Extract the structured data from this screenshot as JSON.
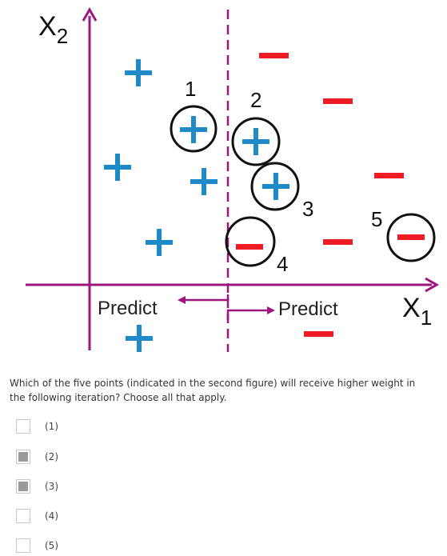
{
  "figure": {
    "axis_x_label": "X",
    "axis_x_subscript": "1",
    "axis_y_label": "X",
    "axis_y_subscript": "2",
    "predict_left": "Predict",
    "predict_right": "Predict",
    "point_labels": [
      "1",
      "2",
      "3",
      "4",
      "5"
    ],
    "colors": {
      "axis": "#a0147e",
      "plus": "#1e8ac8",
      "minus": "#ee1c25",
      "circle": "#111111"
    }
  },
  "question": {
    "text": "Which of the five points (indicated in the second figure) will receive higher weight in the following iteration? Choose all that apply."
  },
  "options": [
    {
      "label": "(1)",
      "checked": false
    },
    {
      "label": "(2)",
      "checked": true
    },
    {
      "label": "(3)",
      "checked": true
    },
    {
      "label": "(4)",
      "checked": false
    },
    {
      "label": "(5)",
      "checked": false
    }
  ]
}
